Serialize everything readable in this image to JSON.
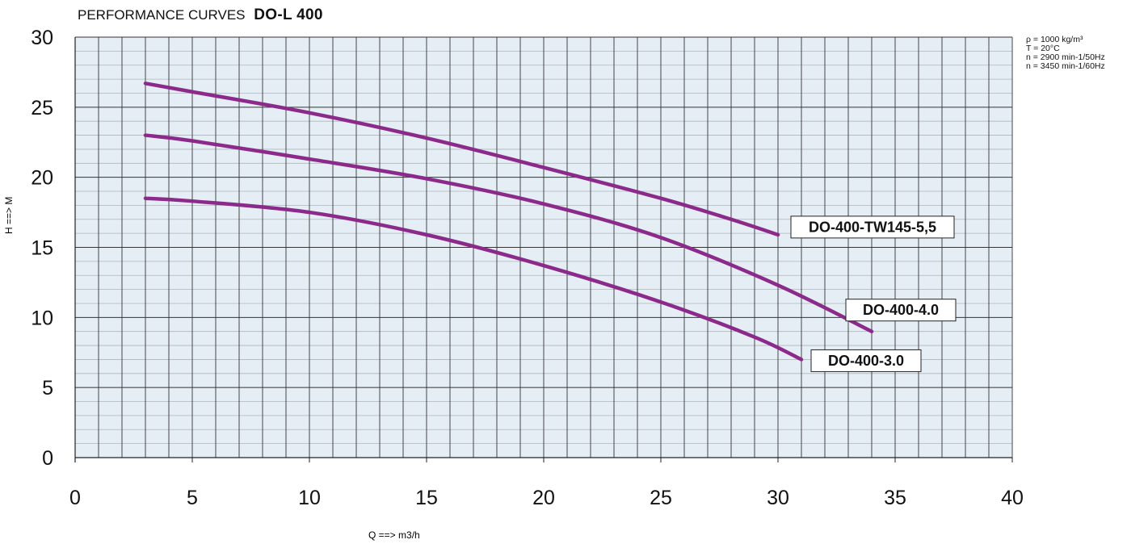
{
  "header": {
    "title_prefix": "PERFORMANCE CURVES",
    "title_model": "DO-L 400"
  },
  "conditions": [
    "ρ  =  1000 kg/m³",
    "T  =  20°C",
    "n  =  2900 min-1/50Hz",
    "n  =  3450 min-1/60Hz"
  ],
  "colors": {
    "plot_background": "#e4eef4",
    "curve": "#8c2a8c",
    "grid_major": "#333333",
    "grid_minor": "#aeb6bc"
  },
  "chart_data": {
    "type": "line",
    "title": "PERFORMANCE CURVES DO-L 400",
    "xlabel": "Q ==> m3/h",
    "ylabel": "H ==> M",
    "xlim": [
      0,
      40
    ],
    "ylim": [
      0,
      30
    ],
    "x_ticks": [
      0,
      5,
      10,
      15,
      20,
      25,
      30,
      35,
      40
    ],
    "y_ticks": [
      0,
      5,
      10,
      15,
      20,
      25,
      30
    ],
    "grid": true,
    "series": [
      {
        "name": "DO-400-TW145-5,5",
        "points": [
          [
            3,
            26.7
          ],
          [
            5,
            26.1
          ],
          [
            10,
            24.6
          ],
          [
            15,
            22.8
          ],
          [
            20,
            20.7
          ],
          [
            25,
            18.5
          ],
          [
            28,
            17.0
          ],
          [
            30,
            15.9
          ]
        ]
      },
      {
        "name": "DO-400-4.0",
        "points": [
          [
            3,
            23.0
          ],
          [
            5,
            22.6
          ],
          [
            10,
            21.3
          ],
          [
            15,
            19.9
          ],
          [
            20,
            18.1
          ],
          [
            25,
            15.7
          ],
          [
            30,
            12.3
          ],
          [
            34,
            9.0
          ]
        ]
      },
      {
        "name": "DO-400-3.0",
        "points": [
          [
            3,
            18.5
          ],
          [
            5,
            18.3
          ],
          [
            10,
            17.5
          ],
          [
            15,
            15.9
          ],
          [
            20,
            13.7
          ],
          [
            25,
            11.1
          ],
          [
            29,
            8.6
          ],
          [
            31,
            7.0
          ]
        ]
      }
    ]
  }
}
